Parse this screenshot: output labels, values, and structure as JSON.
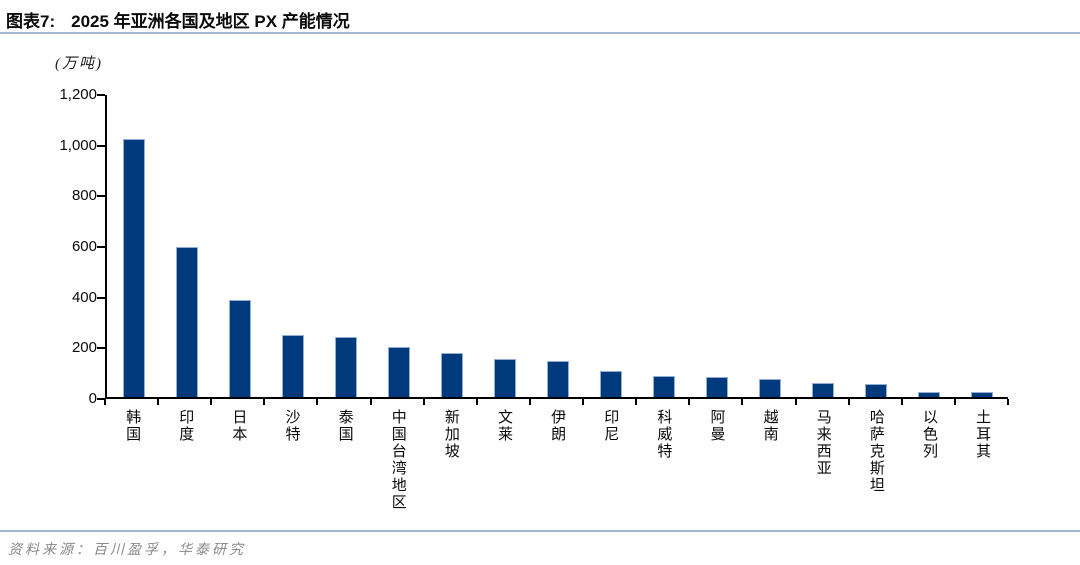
{
  "header": {
    "figure_label": "图表7:",
    "title": "2025 年亚洲各国及地区 PX 产能情况"
  },
  "unit_label": "(万吨)",
  "source": "资料来源：百川盈孚，华泰研究",
  "colors": {
    "bar_fill": "#003a7c",
    "bar_border": "#94afd3",
    "divider_blue": "#a3b7cf",
    "axis": "#000000",
    "source_text": "#8a8a8a"
  },
  "chart_data": {
    "type": "bar",
    "title": "2025 年亚洲各国及地区 PX 产能情况",
    "xlabel": "",
    "ylabel": "(万吨)",
    "ylim": [
      0,
      1200
    ],
    "ytick_step": 200,
    "ytick_labels": [
      "0",
      "200",
      "400",
      "600",
      "800",
      "1,000",
      "1,200"
    ],
    "grid": false,
    "legend": "none",
    "categories": [
      "韩国",
      "印度",
      "日本",
      "沙特",
      "泰国",
      "中国台湾地区",
      "新加坡",
      "文莱",
      "伊朗",
      "印尼",
      "科威特",
      "阿曼",
      "越南",
      "马来西亚",
      "哈萨克斯坦",
      "以色列",
      "土耳其"
    ],
    "values": [
      1025,
      595,
      385,
      245,
      238,
      198,
      175,
      150,
      145,
      105,
      82,
      80,
      70,
      55,
      50,
      18,
      18
    ]
  }
}
